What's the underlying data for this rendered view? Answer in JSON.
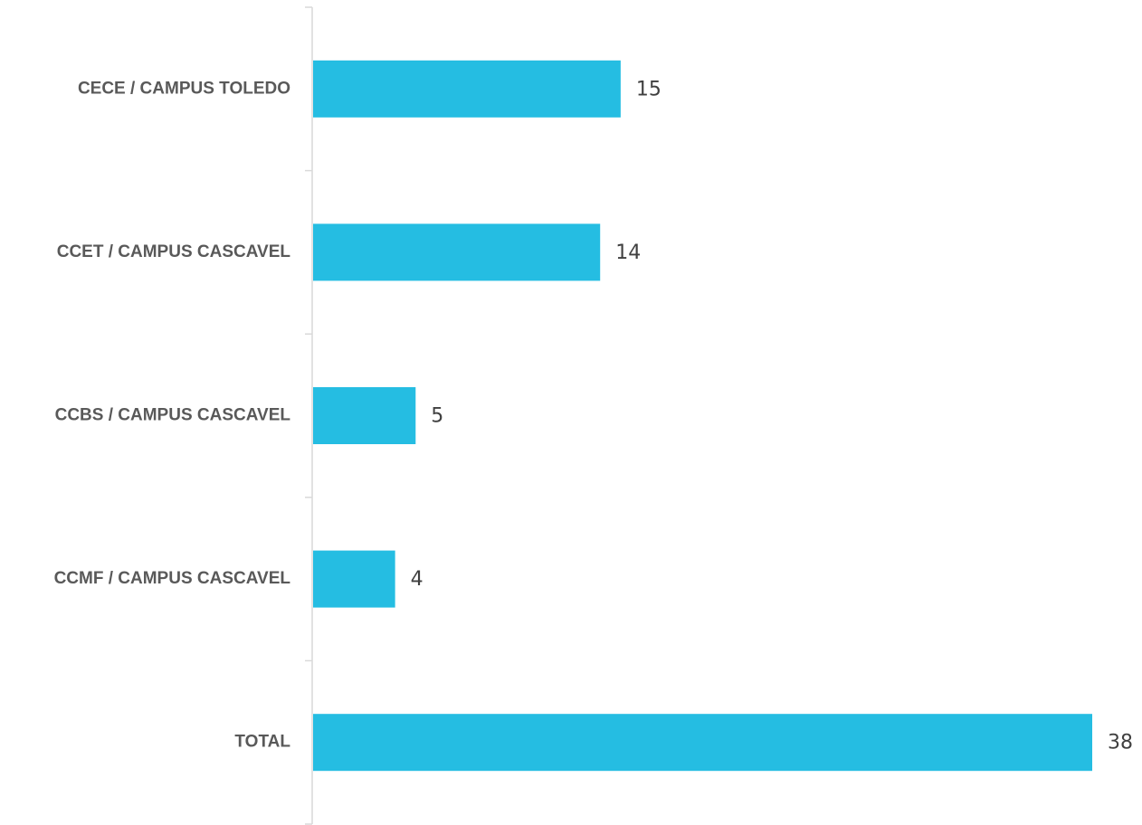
{
  "chart_data": {
    "type": "bar",
    "orientation": "horizontal",
    "categories": [
      "CECE / CAMPUS TOLEDO",
      "CCET / CAMPUS CASCAVEL",
      "CCBS / CAMPUS CASCAVEL",
      "CCMF / CAMPUS CASCAVEL",
      "TOTAL"
    ],
    "values": [
      15,
      14,
      5,
      4,
      38
    ],
    "data_labels": [
      "15",
      "14",
      "5",
      "4",
      "38"
    ],
    "title": "",
    "xlabel": "",
    "ylabel": "",
    "xlim": [
      0,
      38
    ],
    "grid": false,
    "legend": "none",
    "colors": {
      "bar": "#25BDE2",
      "axis": "#D9D9D9",
      "category_text": "#595959",
      "value_text": "#404040"
    }
  }
}
